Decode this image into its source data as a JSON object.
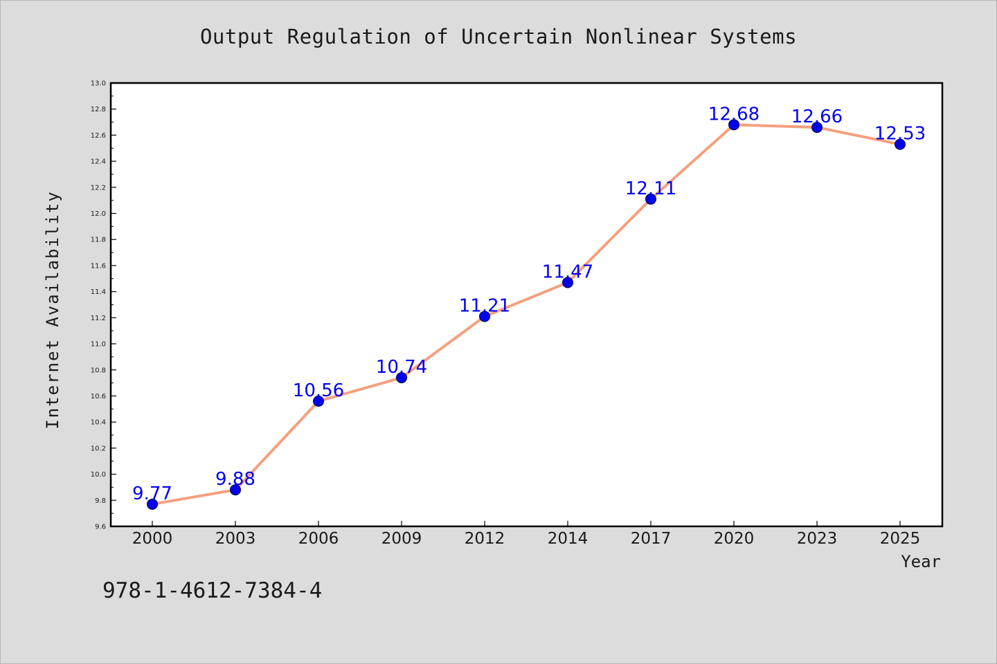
{
  "chart_data": {
    "type": "line",
    "title": "Output Regulation of Uncertain Nonlinear Systems",
    "xlabel": "Year",
    "ylabel": "Internet Availability",
    "categories": [
      "2000",
      "2003",
      "2006",
      "2009",
      "2012",
      "2014",
      "2017",
      "2020",
      "2023",
      "2025"
    ],
    "series": [
      {
        "values": [
          9.77,
          9.88,
          10.56,
          10.74,
          11.21,
          11.47,
          12.11,
          12.68,
          12.66,
          12.53
        ]
      }
    ],
    "data_labels": [
      "9.77",
      "9.88",
      "10.56",
      "10.74",
      "11.21",
      "11.47",
      "12.11",
      "12.68",
      "12.66",
      "12.53"
    ],
    "ylim": [
      9.6,
      13.0
    ],
    "yticks": [
      "9.6",
      "9.8",
      "10.0",
      "10.2",
      "10.4",
      "10.6",
      "10.8",
      "11.0",
      "11.2",
      "11.4",
      "11.6",
      "11.8",
      "12.0",
      "12.2",
      "12.4",
      "12.6",
      "12.8",
      "13.0"
    ],
    "grid": false,
    "legend": "none",
    "colors": {
      "line": "#f4a07f",
      "marker": "#0000ee",
      "label": "#0000ee"
    }
  },
  "footer": {
    "isbn": "978-1-4612-7384-4"
  }
}
